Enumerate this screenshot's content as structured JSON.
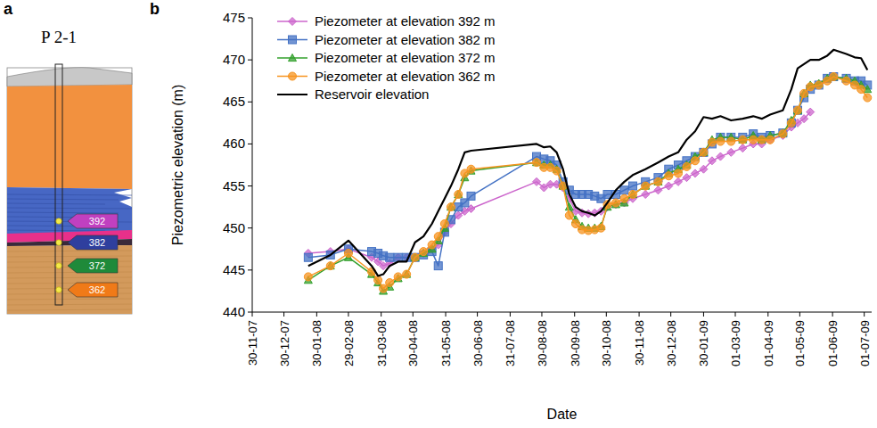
{
  "panel_labels": [
    "a",
    "b"
  ],
  "diagram": {
    "title": "P 2-1",
    "piezometers": [
      {
        "label": "392",
        "color": "#c040c0"
      },
      {
        "label": "382",
        "color": "#2f3f9e"
      },
      {
        "label": "372",
        "color": "#1f8a3a"
      },
      {
        "label": "362",
        "color": "#f07a18"
      }
    ]
  },
  "chart_data": {
    "type": "line",
    "x_label": "Date",
    "y_label": "Piezometric elevation (m)",
    "x": [
      "2008-01-22",
      "2008-02-12",
      "2008-02-29",
      "2008-03-22",
      "2008-03-28",
      "2008-04-02",
      "2008-04-08",
      "2008-04-16",
      "2008-04-24",
      "2008-05-02",
      "2008-05-10",
      "2008-05-18",
      "2008-05-24",
      "2008-05-30",
      "2008-06-05",
      "2008-06-12",
      "2008-06-18",
      "2008-06-24",
      "2008-08-25",
      "2008-09-01",
      "2008-09-07",
      "2008-09-13",
      "2008-09-19",
      "2008-09-25",
      "2008-10-01",
      "2008-10-07",
      "2008-10-13",
      "2008-10-19",
      "2008-10-25",
      "2008-10-31",
      "2008-11-08",
      "2008-11-16",
      "2008-11-24",
      "2008-12-06",
      "2008-12-18",
      "2008-12-28",
      "2009-01-06",
      "2009-01-14",
      "2009-01-22",
      "2009-01-30",
      "2009-02-07",
      "2009-02-15",
      "2009-02-25",
      "2009-03-08",
      "2009-03-18",
      "2009-03-26",
      "2009-04-03",
      "2009-04-15",
      "2009-04-23",
      "2009-04-29",
      "2009-05-05",
      "2009-05-11",
      "2009-05-19",
      "2009-05-27",
      "2009-06-02",
      "2009-06-14",
      "2009-06-22",
      "2009-06-28",
      "2009-07-04"
    ],
    "series": [
      {
        "name": "Piezometer at elevation 392 m",
        "color": "#cc66cc",
        "marker": "diamond",
        "values": [
          447,
          447.2,
          447.5,
          446.5,
          446,
          445.5,
          445.8,
          446.5,
          446.5,
          446.5,
          447,
          447.5,
          448,
          449.5,
          450.5,
          451.5,
          452,
          452.3,
          455.5,
          454.8,
          455.2,
          455.2,
          454.8,
          453.5,
          452,
          451.8,
          451.7,
          451.8,
          452,
          452.5,
          452.8,
          453,
          453.5,
          454,
          454.5,
          455,
          455.5,
          456,
          456.5,
          457,
          458,
          458.5,
          459,
          459.5,
          460,
          460,
          460.5,
          461,
          462,
          462.5,
          463,
          463.8,
          null,
          null,
          null,
          null,
          null,
          null,
          null
        ]
      },
      {
        "name": "Piezometer at elevation 382 m",
        "color": "#4472c4",
        "marker": "square",
        "values": [
          446.5,
          446.8,
          447.5,
          447.2,
          447,
          446.7,
          446.5,
          446.5,
          446.5,
          446.5,
          446.8,
          447.2,
          445.5,
          449.5,
          451,
          452.5,
          453,
          453.8,
          458.5,
          458.2,
          458,
          457.5,
          455.5,
          454.5,
          454,
          454,
          454,
          453.8,
          453.5,
          454,
          454,
          454.5,
          455,
          455.5,
          456,
          457,
          457.5,
          458,
          458.5,
          459,
          460,
          460.8,
          460.8,
          460.8,
          461.2,
          460.8,
          461,
          461.3,
          462.5,
          464,
          465.5,
          466.5,
          467,
          467.8,
          468,
          467.8,
          467.5,
          467.5,
          467
        ]
      },
      {
        "name": "Piezometer at elevation 372 m",
        "color": "#33a02c",
        "marker": "triangle",
        "values": [
          443.8,
          445.5,
          446.5,
          444.5,
          443.5,
          442.5,
          443,
          444,
          444.5,
          446.5,
          447,
          447.5,
          448.5,
          450,
          452.5,
          454,
          456,
          456.8,
          457.8,
          457.5,
          457.5,
          457,
          455,
          452.5,
          451,
          450.2,
          450,
          450,
          450.2,
          452.5,
          452.8,
          453,
          454,
          455,
          455.5,
          456.5,
          457,
          457.5,
          458.5,
          459,
          460.5,
          460.8,
          460.8,
          460.5,
          461,
          460.5,
          461,
          461.3,
          462.8,
          464,
          466,
          467,
          467.2,
          467.8,
          468,
          467.8,
          467.5,
          467,
          466.5
        ]
      },
      {
        "name": "Piezometer at elevation 362 m",
        "color": "#f79420",
        "marker": "circle",
        "values": [
          444.2,
          445.5,
          447,
          444.8,
          443.8,
          442.8,
          443.5,
          444.2,
          444.5,
          446.5,
          447.2,
          448,
          449,
          450.5,
          452.5,
          454,
          456.5,
          457,
          457.8,
          457.2,
          457.2,
          456.8,
          455,
          451.5,
          450.5,
          449.8,
          449.7,
          449.8,
          450,
          452.8,
          453,
          453.5,
          454,
          455,
          455.5,
          456.2,
          456.5,
          457.3,
          458,
          459,
          460.2,
          460.3,
          460.3,
          460.5,
          460.5,
          460.5,
          460.5,
          461.2,
          462.5,
          464,
          466,
          466.8,
          467,
          467.5,
          468,
          467.5,
          467,
          466.5,
          465.5
        ]
      },
      {
        "name": "Reservoir elevation",
        "color": "#000000",
        "marker": "none",
        "values": [
          445.5,
          446.8,
          448.5,
          445.5,
          444.3,
          444.5,
          445.5,
          446,
          446,
          448.3,
          449,
          450.5,
          452,
          453.5,
          455,
          457,
          459,
          459.2,
          460,
          459.6,
          459.7,
          459,
          457,
          454,
          452.5,
          452,
          451.8,
          451.5,
          452,
          453,
          454.5,
          455.5,
          456.3,
          457,
          457.8,
          458.5,
          459,
          460.5,
          461.5,
          463.2,
          463,
          463.3,
          462.8,
          463,
          463.3,
          463,
          463.5,
          464,
          466.5,
          469,
          469.5,
          470,
          470,
          470.5,
          471.2,
          470.7,
          470.3,
          470.2,
          468.8
        ]
      }
    ],
    "xlim": [
      "2007-11-30",
      "2009-07-08"
    ],
    "xticks": [
      {
        "value": "2007-11-30",
        "label": "30-11-07"
      },
      {
        "value": "2007-12-30",
        "label": "30-12-07"
      },
      {
        "value": "2008-01-30",
        "label": "30-01-08"
      },
      {
        "value": "2008-02-29",
        "label": "29-02-08"
      },
      {
        "value": "2008-03-31",
        "label": "31-03-08"
      },
      {
        "value": "2008-04-30",
        "label": "30-04-08"
      },
      {
        "value": "2008-05-31",
        "label": "31-05-08"
      },
      {
        "value": "2008-06-30",
        "label": "30-06-08"
      },
      {
        "value": "2008-07-31",
        "label": "31-07-08"
      },
      {
        "value": "2008-08-30",
        "label": "30-08-08"
      },
      {
        "value": "2008-09-30",
        "label": "30-09-08"
      },
      {
        "value": "2008-10-30",
        "label": "30-10-08"
      },
      {
        "value": "2008-11-30",
        "label": "30-11-08"
      },
      {
        "value": "2008-12-30",
        "label": "30-12-08"
      },
      {
        "value": "2009-01-30",
        "label": "30-01-09"
      },
      {
        "value": "2009-03-01",
        "label": "01-03-09"
      },
      {
        "value": "2009-04-01",
        "label": "01-04-09"
      },
      {
        "value": "2009-05-01",
        "label": "01-05-09"
      },
      {
        "value": "2009-06-01",
        "label": "01-06-09"
      },
      {
        "value": "2009-07-01",
        "label": "01-07-09"
      }
    ],
    "ylim": [
      440,
      475
    ],
    "yticks": [
      440,
      445,
      450,
      455,
      460,
      465,
      470,
      475
    ],
    "legend": "upper left",
    "grid": false
  }
}
